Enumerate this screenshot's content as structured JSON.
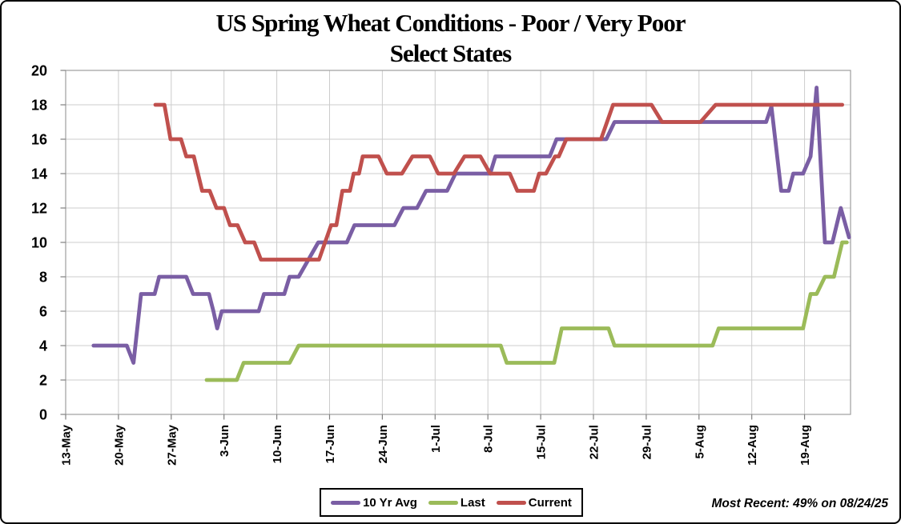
{
  "chart_data": {
    "type": "line",
    "title_line1": "US Spring Wheat Conditions - Poor / Very Poor",
    "title_line2": "Select States",
    "xlabel": "",
    "ylabel": "",
    "ylim": [
      0,
      20
    ],
    "y_ticks": [
      0,
      2,
      4,
      6,
      8,
      10,
      12,
      14,
      16,
      18,
      20
    ],
    "x_domain_days": [
      0,
      104.1
    ],
    "x_ticks": [
      {
        "label": "13-May",
        "day": 0
      },
      {
        "label": "20-May",
        "day": 7
      },
      {
        "label": "27-May",
        "day": 14
      },
      {
        "label": "3-Jun",
        "day": 21
      },
      {
        "label": "10-Jun",
        "day": 28
      },
      {
        "label": "17-Jun",
        "day": 35
      },
      {
        "label": "24-Jun",
        "day": 42
      },
      {
        "label": "1-Jul",
        "day": 49
      },
      {
        "label": "8-Jul",
        "day": 56
      },
      {
        "label": "15-Jul",
        "day": 63
      },
      {
        "label": "22-Jul",
        "day": 70
      },
      {
        "label": "29-Jul",
        "day": 77
      },
      {
        "label": "5-Aug",
        "day": 84
      },
      {
        "label": "12-Aug",
        "day": 91
      },
      {
        "label": "19-Aug",
        "day": 98
      }
    ],
    "grid": true,
    "legend_position": "bottom-center",
    "note": "Most Recent: 49% on 08/24/25",
    "series": [
      {
        "name": "10 Yr Avg",
        "color": "#7A5EA4",
        "points": [
          [
            3.7,
            4
          ],
          [
            8.1,
            4
          ],
          [
            9.0,
            3
          ],
          [
            10.0,
            7
          ],
          [
            11.8,
            7
          ],
          [
            12.4,
            8
          ],
          [
            16.0,
            8
          ],
          [
            16.9,
            7
          ],
          [
            19.0,
            7
          ],
          [
            19.6,
            6
          ],
          [
            20.1,
            5
          ],
          [
            20.7,
            6
          ],
          [
            25.6,
            6
          ],
          [
            26.3,
            7
          ],
          [
            29.0,
            7
          ],
          [
            29.7,
            8
          ],
          [
            30.9,
            8
          ],
          [
            33.5,
            10
          ],
          [
            37.3,
            10
          ],
          [
            38.3,
            11
          ],
          [
            43.6,
            11
          ],
          [
            44.8,
            12
          ],
          [
            46.6,
            12
          ],
          [
            47.8,
            13
          ],
          [
            50.6,
            13
          ],
          [
            51.7,
            14
          ],
          [
            56.3,
            14
          ],
          [
            57.0,
            15
          ],
          [
            64.2,
            15
          ],
          [
            65.1,
            16
          ],
          [
            71.7,
            16
          ],
          [
            72.8,
            17
          ],
          [
            92.9,
            17
          ],
          [
            93.6,
            17.9
          ],
          [
            94.9,
            13
          ],
          [
            95.9,
            13
          ],
          [
            96.5,
            14
          ],
          [
            97.8,
            14
          ],
          [
            98.8,
            15
          ],
          [
            99.6,
            19
          ],
          [
            100.7,
            10
          ],
          [
            101.7,
            10
          ],
          [
            102.8,
            12
          ],
          [
            103.9,
            10.3
          ]
        ]
      },
      {
        "name": "Last",
        "color": "#9BBB59",
        "points": [
          [
            18.7,
            2
          ],
          [
            22.7,
            2
          ],
          [
            23.6,
            3
          ],
          [
            29.7,
            3
          ],
          [
            30.9,
            4
          ],
          [
            57.7,
            4
          ],
          [
            58.5,
            3
          ],
          [
            64.8,
            3
          ],
          [
            65.8,
            5
          ],
          [
            72.0,
            5
          ],
          [
            72.8,
            4
          ],
          [
            85.8,
            4
          ],
          [
            86.6,
            5
          ],
          [
            97.8,
            5
          ],
          [
            98.8,
            7
          ],
          [
            99.6,
            7
          ],
          [
            100.7,
            8
          ],
          [
            101.9,
            8
          ],
          [
            103.0,
            10
          ],
          [
            103.6,
            10
          ]
        ]
      },
      {
        "name": "Current",
        "color": "#C0504D",
        "points": [
          [
            11.9,
            18
          ],
          [
            13.1,
            18
          ],
          [
            13.9,
            16
          ],
          [
            15.3,
            16
          ],
          [
            16.0,
            15
          ],
          [
            17.0,
            15
          ],
          [
            18.1,
            13
          ],
          [
            19.1,
            13
          ],
          [
            20.0,
            12
          ],
          [
            21.0,
            12
          ],
          [
            21.8,
            11
          ],
          [
            22.8,
            11
          ],
          [
            23.8,
            10
          ],
          [
            25.0,
            10
          ],
          [
            25.9,
            9
          ],
          [
            33.6,
            9
          ],
          [
            35.2,
            11
          ],
          [
            35.9,
            11
          ],
          [
            36.7,
            13
          ],
          [
            37.7,
            13
          ],
          [
            38.2,
            14
          ],
          [
            38.9,
            14
          ],
          [
            39.4,
            15
          ],
          [
            41.5,
            15
          ],
          [
            42.6,
            14
          ],
          [
            44.6,
            14
          ],
          [
            46.0,
            15
          ],
          [
            48.3,
            15
          ],
          [
            49.4,
            14
          ],
          [
            51.5,
            14
          ],
          [
            52.9,
            15
          ],
          [
            55.0,
            15
          ],
          [
            56.3,
            14
          ],
          [
            58.9,
            14
          ],
          [
            59.9,
            13
          ],
          [
            62.1,
            13
          ],
          [
            62.8,
            14
          ],
          [
            63.7,
            14
          ],
          [
            64.9,
            15
          ],
          [
            65.4,
            15
          ],
          [
            66.4,
            16
          ],
          [
            71.0,
            16
          ],
          [
            72.6,
            18
          ],
          [
            77.7,
            18
          ],
          [
            79.1,
            17
          ],
          [
            84.2,
            17
          ],
          [
            86.2,
            18
          ],
          [
            103.0,
            18
          ]
        ]
      }
    ],
    "style_colors": {
      "gridline": "#cccccc",
      "plot_border": "#9e9e9e",
      "tick": "#808080",
      "text": "#000000"
    }
  }
}
